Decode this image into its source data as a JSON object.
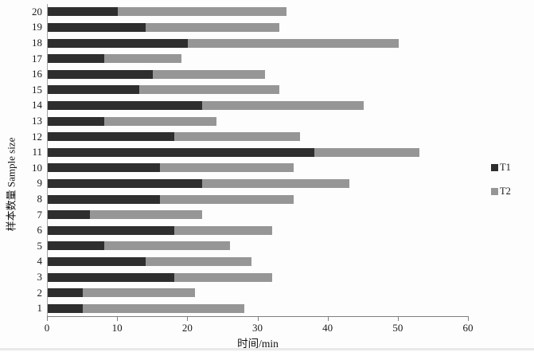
{
  "chart_data": {
    "type": "bar",
    "orientation": "horizontal",
    "stacked": true,
    "title": "",
    "xlabel": "时间/min",
    "ylabel": "样本数量 Sample size",
    "categories": [
      1,
      2,
      3,
      4,
      5,
      6,
      7,
      8,
      9,
      10,
      11,
      12,
      13,
      14,
      15,
      16,
      17,
      18,
      19,
      20
    ],
    "series": [
      {
        "name": "T1",
        "color": "#2e2e2e",
        "values": [
          5,
          5,
          18,
          14,
          8,
          18,
          6,
          16,
          22,
          16,
          38,
          18,
          8,
          22,
          13,
          15,
          8,
          20,
          14,
          10
        ]
      },
      {
        "name": "T2",
        "color": "#969696",
        "values": [
          23,
          16,
          14,
          15,
          18,
          14,
          16,
          19,
          21,
          19,
          15,
          18,
          16,
          23,
          20,
          16,
          11,
          30,
          19,
          24
        ]
      }
    ],
    "xlim": [
      0,
      60
    ],
    "xticks": [
      0,
      10,
      20,
      30,
      40,
      50,
      60
    ],
    "grid": false,
    "legend_position": "right",
    "axis_color": "#7f7f7f"
  }
}
